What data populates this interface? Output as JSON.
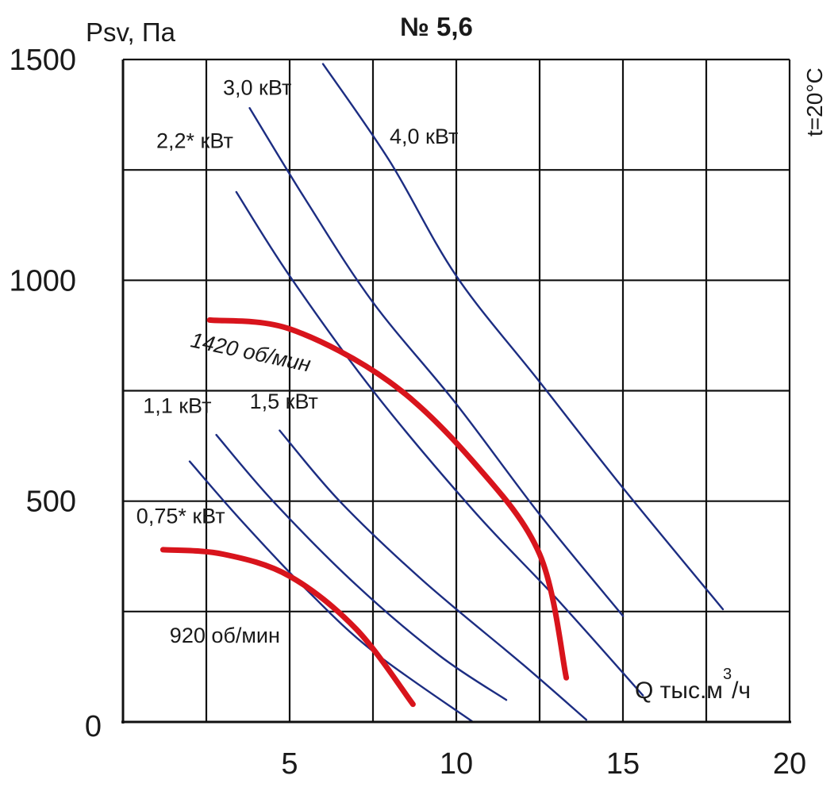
{
  "chart_data": {
    "type": "line",
    "title": "№ 5,6",
    "ylabel": "Psv, Па",
    "xlabel_main": "Q тыс.м",
    "xlabel_sup": "3",
    "xlabel_tail": "/ч",
    "temperature_note": "t=20°C",
    "xlim": [
      0,
      20
    ],
    "ylim": [
      0,
      1500
    ],
    "x_ticks": [
      5,
      10,
      15,
      20
    ],
    "y_ticks": [
      0,
      500,
      1000,
      1500
    ],
    "x_tick_labels": [
      "5",
      "10",
      "15",
      "20"
    ],
    "y_tick_labels": [
      "0",
      "500",
      "1000",
      "1500"
    ],
    "grid": true,
    "x_grid": [
      2.5,
      5,
      7.5,
      10,
      12.5,
      15,
      17.5,
      20
    ],
    "y_grid": [
      250,
      500,
      750,
      1000,
      1250,
      1500
    ],
    "colors": {
      "power": "#1c2d82",
      "speed": "#d8141c",
      "grid": "#111111"
    },
    "power_lines": [
      {
        "label": "0,75* кВт",
        "points": [
          [
            2,
            590
          ],
          [
            3.5,
            460
          ],
          [
            5.5,
            300
          ],
          [
            7.5,
            160
          ],
          [
            10.5,
            0
          ]
        ]
      },
      {
        "label": "1,1 кВт",
        "points": [
          [
            2.8,
            650
          ],
          [
            4.5,
            500
          ],
          [
            7,
            310
          ],
          [
            9.5,
            150
          ],
          [
            11.5,
            50
          ]
        ]
      },
      {
        "label": "1,5 кВт",
        "points": [
          [
            4.7,
            660
          ],
          [
            6.5,
            500
          ],
          [
            9,
            320
          ],
          [
            12,
            130
          ],
          [
            13.9,
            5
          ]
        ]
      },
      {
        "label": "2,2* кВт",
        "points": [
          [
            3.4,
            1200
          ],
          [
            5,
            1010
          ],
          [
            7.5,
            750
          ],
          [
            10.5,
            480
          ],
          [
            13,
            280
          ],
          [
            15.6,
            60
          ]
        ]
      },
      {
        "label": "3,0 кВт",
        "points": [
          [
            3.8,
            1390
          ],
          [
            5.5,
            1180
          ],
          [
            7.5,
            950
          ],
          [
            10,
            720
          ],
          [
            12.5,
            470
          ],
          [
            15,
            240
          ]
        ]
      },
      {
        "label": "4,0 кВт",
        "points": [
          [
            6,
            1490
          ],
          [
            8,
            1270
          ],
          [
            10,
            1010
          ],
          [
            12.5,
            770
          ],
          [
            15,
            530
          ],
          [
            18,
            255
          ]
        ]
      }
    ],
    "speed_curves": [
      {
        "label": "920 об/мин",
        "points": [
          [
            1.2,
            390
          ],
          [
            3,
            380
          ],
          [
            5,
            330
          ],
          [
            7,
            210
          ],
          [
            8.7,
            40
          ]
        ]
      },
      {
        "label": "1420 об/мин",
        "points": [
          [
            2.6,
            910
          ],
          [
            5,
            890
          ],
          [
            8,
            770
          ],
          [
            10.5,
            590
          ],
          [
            12.5,
            380
          ],
          [
            13.3,
            100
          ]
        ]
      }
    ]
  }
}
